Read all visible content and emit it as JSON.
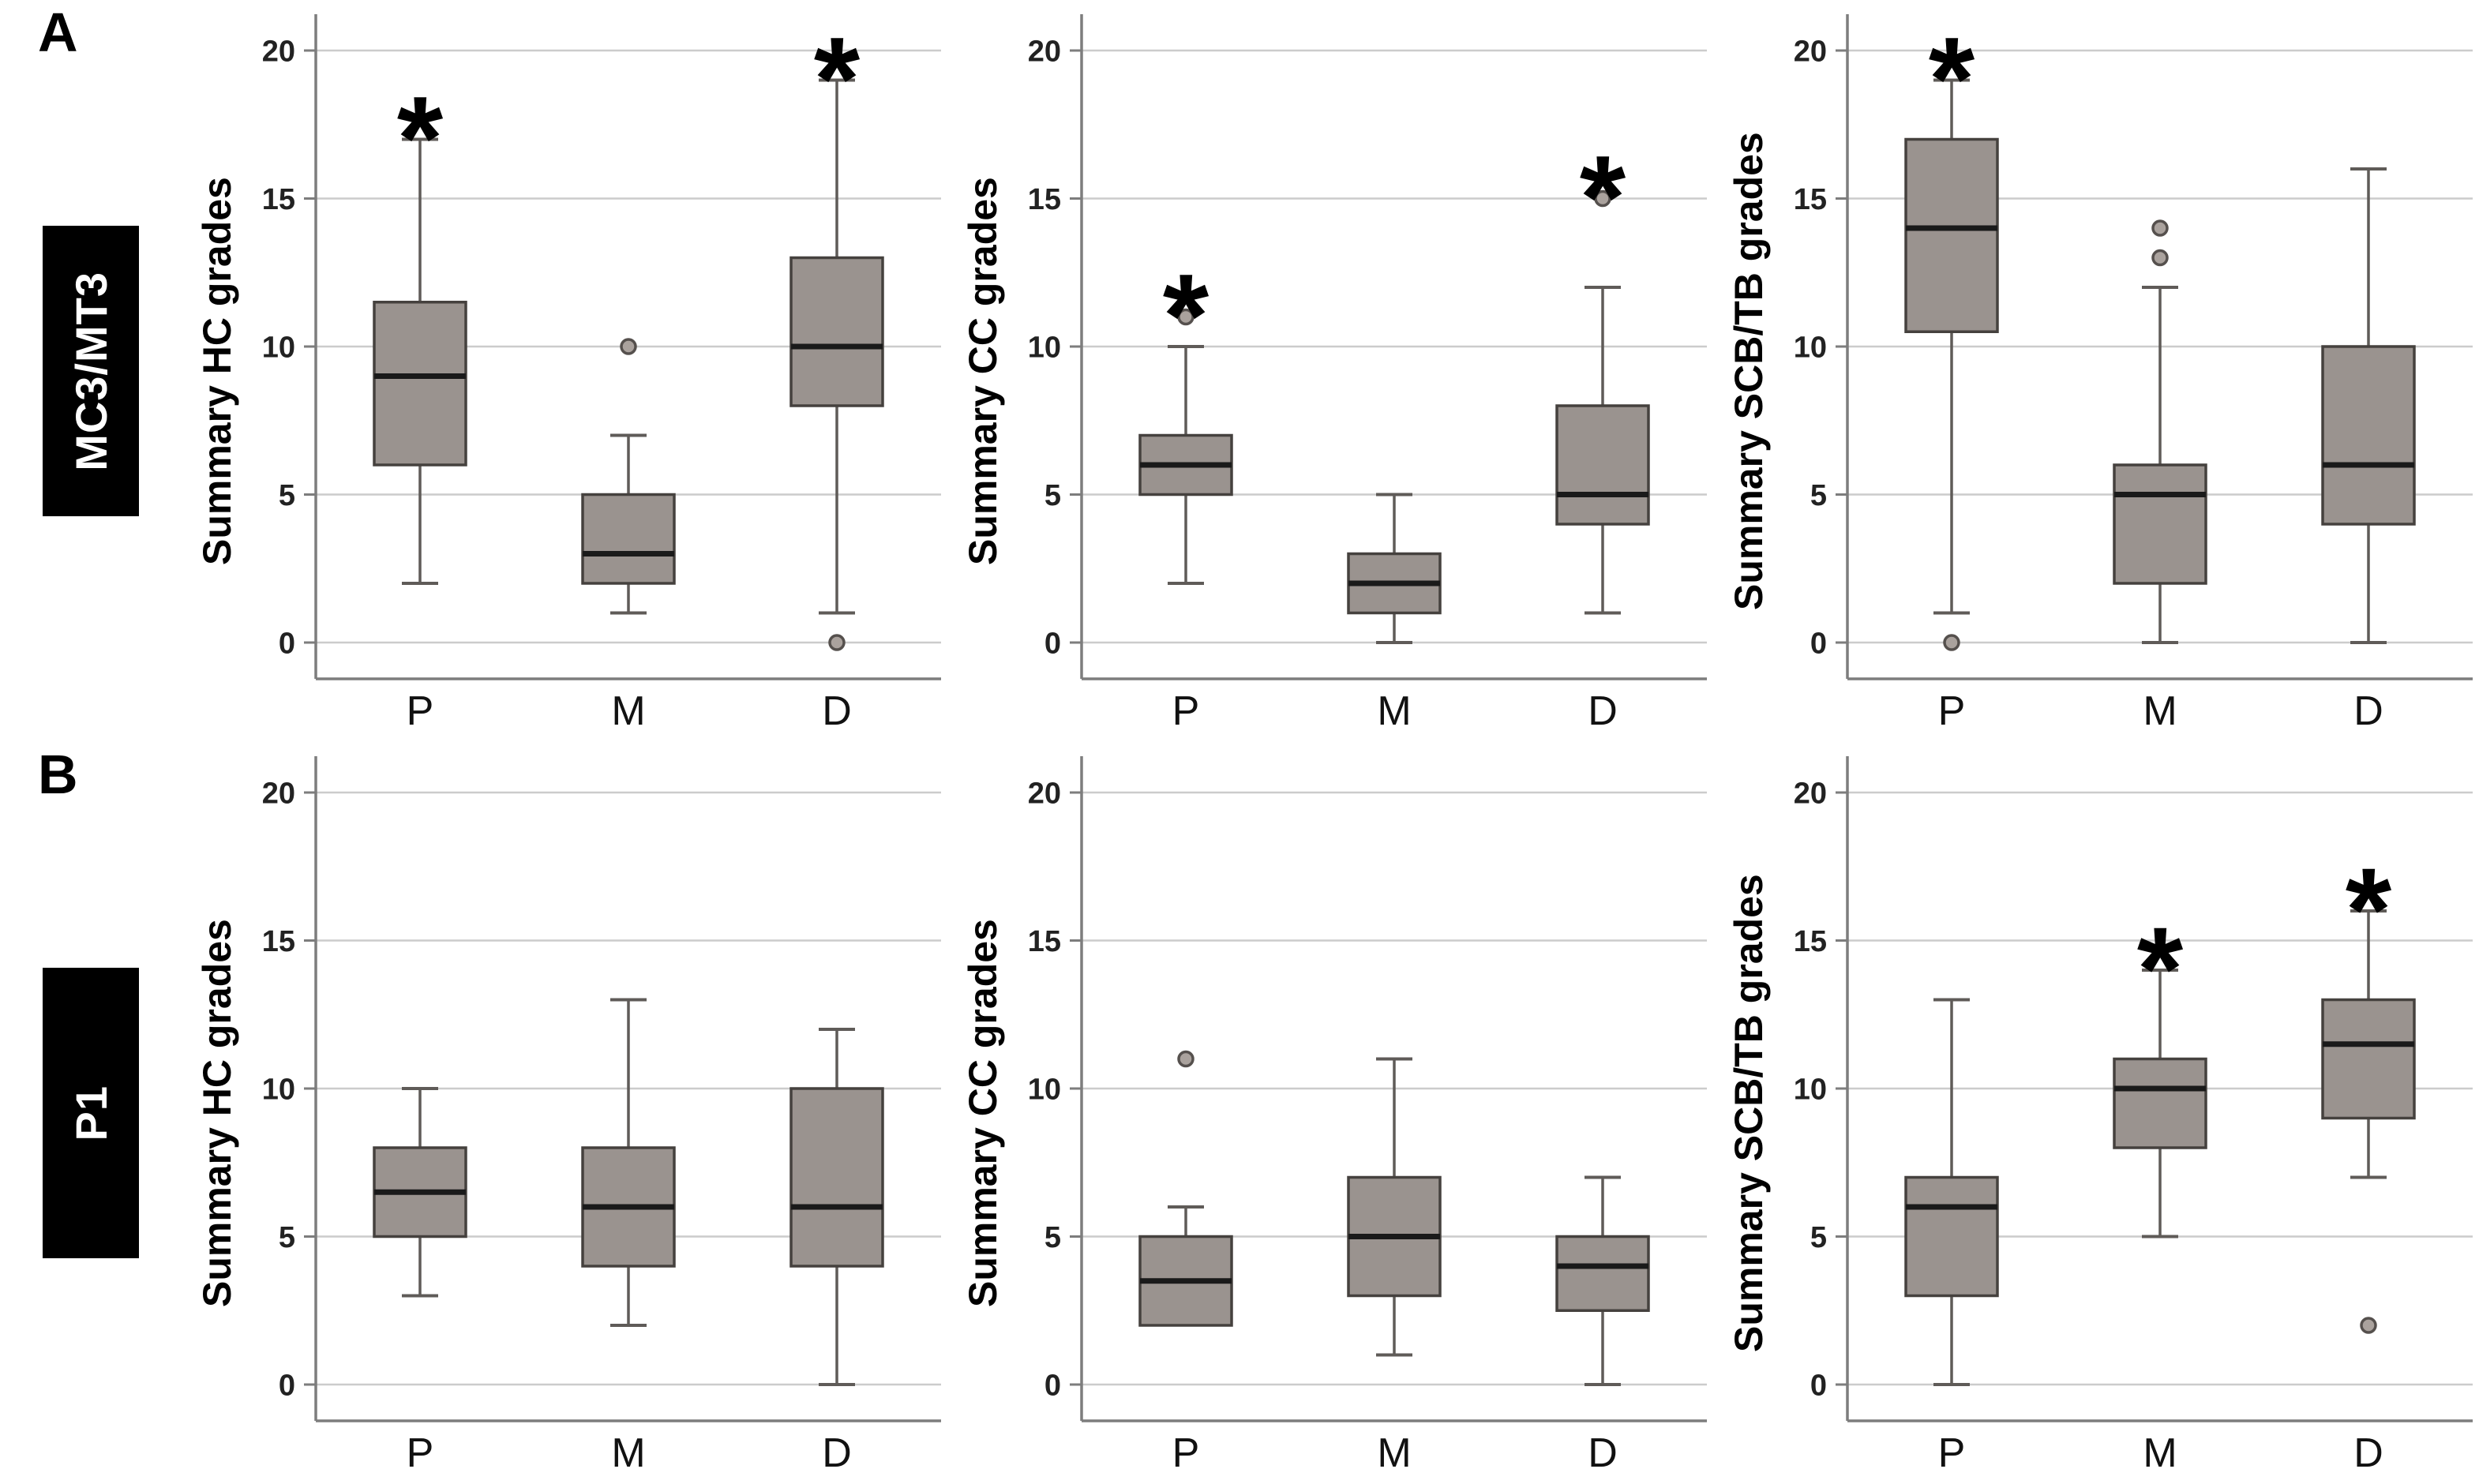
{
  "figure": {
    "rows": [
      {
        "panel_letter": "A",
        "row_label": "MC3/MT3"
      },
      {
        "panel_letter": "B",
        "row_label": "P1"
      }
    ],
    "colors": {
      "box_fill": "#9a938f",
      "box_stroke": "#45413e",
      "median": "#1a1a1a",
      "whisker": "#5f5b58",
      "outlier_stroke": "#55504d",
      "outlier_fill": "#aaa29d",
      "gridline": "#cccccc",
      "axis": "#7d7d7d",
      "tick_text": "#222222",
      "category_text": "#111111",
      "asterisk": "#000000"
    }
  },
  "chart_data": [
    {
      "type": "boxplot",
      "row": "MC3/MT3",
      "ylabel": "Summary HC grades",
      "xlabel": "",
      "categories": [
        "P",
        "M",
        "D"
      ],
      "ylim": [
        0,
        20
      ],
      "y_ticks": [
        0,
        5,
        10,
        15,
        20
      ],
      "grid": true,
      "boxes": [
        {
          "category": "P",
          "whisker_low": 2,
          "q1": 6,
          "median": 9,
          "q3": 11.5,
          "whisker_high": 17,
          "outliers": [],
          "significant": true
        },
        {
          "category": "M",
          "whisker_low": 1,
          "q1": 2,
          "median": 3,
          "q3": 5,
          "whisker_high": 7,
          "outliers": [
            10
          ],
          "significant": false
        },
        {
          "category": "D",
          "whisker_low": 1,
          "q1": 8,
          "median": 10,
          "q3": 13,
          "whisker_high": 19,
          "outliers": [
            0
          ],
          "significant": true
        }
      ]
    },
    {
      "type": "boxplot",
      "row": "MC3/MT3",
      "ylabel": "Summary CC grades",
      "xlabel": "",
      "categories": [
        "P",
        "M",
        "D"
      ],
      "ylim": [
        0,
        20
      ],
      "y_ticks": [
        0,
        5,
        10,
        15,
        20
      ],
      "grid": true,
      "boxes": [
        {
          "category": "P",
          "whisker_low": 2,
          "q1": 5,
          "median": 6,
          "q3": 7,
          "whisker_high": 10,
          "outliers": [
            11
          ],
          "significant": true
        },
        {
          "category": "M",
          "whisker_low": 0,
          "q1": 1,
          "median": 2,
          "q3": 3,
          "whisker_high": 5,
          "outliers": [],
          "significant": false
        },
        {
          "category": "D",
          "whisker_low": 1,
          "q1": 4,
          "median": 5,
          "q3": 8,
          "whisker_high": 12,
          "outliers": [
            15
          ],
          "significant": true
        }
      ]
    },
    {
      "type": "boxplot",
      "row": "MC3/MT3",
      "ylabel": "Summary SCB/TB grades",
      "xlabel": "",
      "categories": [
        "P",
        "M",
        "D"
      ],
      "ylim": [
        0,
        20
      ],
      "y_ticks": [
        0,
        5,
        10,
        15,
        20
      ],
      "grid": true,
      "boxes": [
        {
          "category": "P",
          "whisker_low": 1,
          "q1": 10.5,
          "median": 14,
          "q3": 17,
          "whisker_high": 19,
          "outliers": [
            0
          ],
          "significant": true
        },
        {
          "category": "M",
          "whisker_low": 0,
          "q1": 2,
          "median": 5,
          "q3": 6,
          "whisker_high": 12,
          "outliers": [
            13,
            14
          ],
          "significant": false
        },
        {
          "category": "D",
          "whisker_low": 0,
          "q1": 4,
          "median": 6,
          "q3": 10,
          "whisker_high": 16,
          "outliers": [],
          "significant": false
        }
      ]
    },
    {
      "type": "boxplot",
      "row": "P1",
      "ylabel": "Summary HC grades",
      "xlabel": "",
      "categories": [
        "P",
        "M",
        "D"
      ],
      "ylim": [
        0,
        20
      ],
      "y_ticks": [
        0,
        5,
        10,
        15,
        20
      ],
      "grid": true,
      "boxes": [
        {
          "category": "P",
          "whisker_low": 3,
          "q1": 5,
          "median": 6.5,
          "q3": 8,
          "whisker_high": 10,
          "outliers": [],
          "significant": false
        },
        {
          "category": "M",
          "whisker_low": 2,
          "q1": 4,
          "median": 6,
          "q3": 8,
          "whisker_high": 13,
          "outliers": [],
          "significant": false
        },
        {
          "category": "D",
          "whisker_low": 0,
          "q1": 4,
          "median": 6,
          "q3": 10,
          "whisker_high": 12,
          "outliers": [],
          "significant": false
        }
      ]
    },
    {
      "type": "boxplot",
      "row": "P1",
      "ylabel": "Summary CC grades",
      "xlabel": "",
      "categories": [
        "P",
        "M",
        "D"
      ],
      "ylim": [
        0,
        20
      ],
      "y_ticks": [
        0,
        5,
        10,
        15,
        20
      ],
      "grid": true,
      "boxes": [
        {
          "category": "P",
          "whisker_low": 2,
          "q1": 2,
          "median": 3.5,
          "q3": 5,
          "whisker_high": 6,
          "outliers": [
            11
          ],
          "significant": false
        },
        {
          "category": "M",
          "whisker_low": 1,
          "q1": 3,
          "median": 5,
          "q3": 7,
          "whisker_high": 11,
          "outliers": [],
          "significant": false
        },
        {
          "category": "D",
          "whisker_low": 0,
          "q1": 2.5,
          "median": 4,
          "q3": 5,
          "whisker_high": 7,
          "outliers": [],
          "significant": false
        }
      ]
    },
    {
      "type": "boxplot",
      "row": "P1",
      "ylabel": "Summary SCB/TB grades",
      "xlabel": "",
      "categories": [
        "P",
        "M",
        "D"
      ],
      "ylim": [
        0,
        20
      ],
      "y_ticks": [
        0,
        5,
        10,
        15,
        20
      ],
      "grid": true,
      "boxes": [
        {
          "category": "P",
          "whisker_low": 0,
          "q1": 3,
          "median": 6,
          "q3": 7,
          "whisker_high": 13,
          "outliers": [],
          "significant": false
        },
        {
          "category": "M",
          "whisker_low": 5,
          "q1": 8,
          "median": 10,
          "q3": 11,
          "whisker_high": 14,
          "outliers": [],
          "significant": true
        },
        {
          "category": "D",
          "whisker_low": 7,
          "q1": 9,
          "median": 11.5,
          "q3": 13,
          "whisker_high": 16,
          "outliers": [
            2
          ],
          "significant": true
        }
      ]
    }
  ]
}
